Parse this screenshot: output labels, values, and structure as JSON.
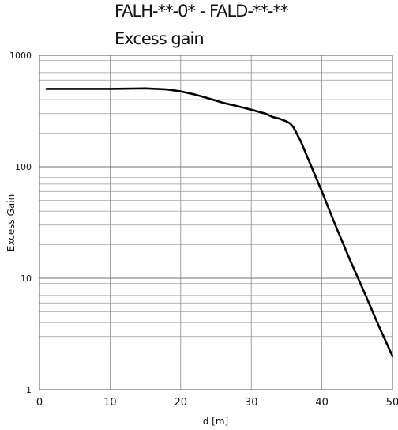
{
  "chart_data": {
    "type": "line",
    "title": "FALH-**-0* - FALD-**-**",
    "subtitle": "Excess gain",
    "xlabel": "d [m]",
    "ylabel": "Excess Gain",
    "x_scale": "linear",
    "y_scale": "log",
    "xlim": [
      0,
      50
    ],
    "ylim": [
      1,
      1000
    ],
    "x_ticks": [
      0,
      10,
      20,
      30,
      40,
      50
    ],
    "x_tick_labels": [
      "0",
      "10",
      "20",
      "30",
      "40",
      "50"
    ],
    "y_ticks": [
      1,
      10,
      100,
      1000
    ],
    "y_tick_labels": [
      "1",
      "10",
      "100",
      "1000"
    ],
    "grid": true,
    "line_color": "#000000",
    "series": [
      {
        "x": [
          1,
          5,
          10,
          15,
          18,
          20,
          22,
          24,
          26,
          28,
          30,
          32,
          33,
          34,
          35,
          35.5,
          36,
          37,
          38,
          40,
          42,
          44,
          46,
          48,
          50
        ],
        "y": [
          500,
          500,
          500,
          505,
          495,
          475,
          445,
          410,
          375,
          350,
          325,
          300,
          280,
          270,
          255,
          245,
          225,
          170,
          120,
          60,
          29,
          14.5,
          7.5,
          3.8,
          2
        ]
      }
    ]
  }
}
